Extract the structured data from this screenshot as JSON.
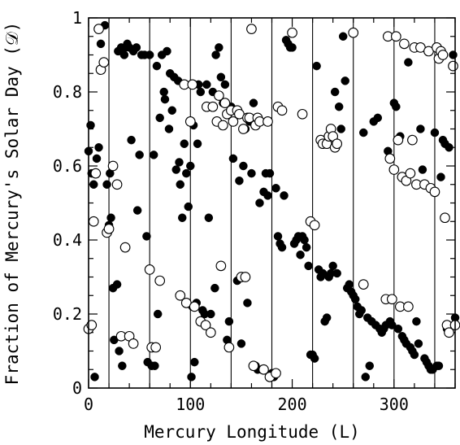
{
  "chart_data": {
    "type": "scatter",
    "title": "",
    "xlabel": "Mercury Longitude (L)",
    "ylabel": "Fraction of Mercury's Solar Day (𝒟)",
    "xlim": [
      0,
      360
    ],
    "ylim": [
      0,
      1
    ],
    "xticks": [
      0,
      100,
      200,
      300
    ],
    "yticks": [
      0,
      0.2,
      0.4,
      0.6,
      0.8,
      1
    ],
    "grid": false,
    "vertical_lines": [
      20,
      60,
      100,
      140,
      180,
      220,
      260,
      300,
      340
    ],
    "legend": "none",
    "series": [
      {
        "marker": "filled-circle",
        "color": "#000000",
        "points": [
          [
            0,
            0.64
          ],
          [
            2,
            0.71
          ],
          [
            3,
            0.58
          ],
          [
            5,
            0.55
          ],
          [
            6,
            0.03
          ],
          [
            8,
            0.62
          ],
          [
            10,
            0.65
          ],
          [
            12,
            0.93
          ],
          [
            16,
            0.98
          ],
          [
            18,
            0.55
          ],
          [
            20,
            0.44
          ],
          [
            21,
            0.58
          ],
          [
            22,
            0.46
          ],
          [
            24,
            0.27
          ],
          [
            25,
            0.13
          ],
          [
            28,
            0.28
          ],
          [
            29,
            0.91
          ],
          [
            30,
            0.1
          ],
          [
            32,
            0.92
          ],
          [
            33,
            0.06
          ],
          [
            35,
            0.9
          ],
          [
            36,
            0.92
          ],
          [
            38,
            0.93
          ],
          [
            40,
            0.92
          ],
          [
            42,
            0.67
          ],
          [
            44,
            0.91
          ],
          [
            47,
            0.92
          ],
          [
            48,
            0.48
          ],
          [
            50,
            0.63
          ],
          [
            52,
            0.9
          ],
          [
            55,
            0.9
          ],
          [
            57,
            0.41
          ],
          [
            58,
            0.07
          ],
          [
            60,
            0.9
          ],
          [
            62,
            0.06
          ],
          [
            64,
            0.63
          ],
          [
            65,
            0.06
          ],
          [
            67,
            0.87
          ],
          [
            68,
            0.2
          ],
          [
            70,
            0.73
          ],
          [
            72,
            0.9
          ],
          [
            74,
            0.8
          ],
          [
            75,
            0.78
          ],
          [
            77,
            0.91
          ],
          [
            79,
            0.7
          ],
          [
            80,
            0.85
          ],
          [
            82,
            0.75
          ],
          [
            84,
            0.84
          ],
          [
            86,
            0.59
          ],
          [
            88,
            0.83
          ],
          [
            89,
            0.61
          ],
          [
            90,
            0.55
          ],
          [
            92,
            0.46
          ],
          [
            94,
            0.66
          ],
          [
            96,
            0.58
          ],
          [
            98,
            0.49
          ],
          [
            100,
            0.6
          ],
          [
            101,
            0.03
          ],
          [
            102,
            0.22
          ],
          [
            103,
            0.71
          ],
          [
            104,
            0.07
          ],
          [
            106,
            0.23
          ],
          [
            107,
            0.66
          ],
          [
            108,
            0.82
          ],
          [
            110,
            0.8
          ],
          [
            112,
            0.21
          ],
          [
            114,
            0.2
          ],
          [
            116,
            0.82
          ],
          [
            118,
            0.46
          ],
          [
            120,
            0.2
          ],
          [
            122,
            0.8
          ],
          [
            124,
            0.27
          ],
          [
            125,
            0.9
          ],
          [
            128,
            0.92
          ],
          [
            130,
            0.84
          ],
          [
            132,
            0.77
          ],
          [
            134,
            0.82
          ],
          [
            136,
            0.13
          ],
          [
            138,
            0.18
          ],
          [
            140,
            0.76
          ],
          [
            142,
            0.62
          ],
          [
            144,
            0.75
          ],
          [
            146,
            0.29
          ],
          [
            148,
            0.56
          ],
          [
            150,
            0.12
          ],
          [
            152,
            0.6
          ],
          [
            154,
            0.7
          ],
          [
            156,
            0.23
          ],
          [
            158,
            0.72
          ],
          [
            160,
            0.58
          ],
          [
            162,
            0.77
          ],
          [
            164,
            0.06
          ],
          [
            166,
            0.05
          ],
          [
            168,
            0.5
          ],
          [
            170,
            0.05
          ],
          [
            172,
            0.53
          ],
          [
            174,
            0.58
          ],
          [
            176,
            0.52
          ],
          [
            178,
            0.58
          ],
          [
            180,
            0.04
          ],
          [
            182,
            0.03
          ],
          [
            184,
            0.54
          ],
          [
            186,
            0.41
          ],
          [
            188,
            0.39
          ],
          [
            190,
            0.38
          ],
          [
            192,
            0.52
          ],
          [
            194,
            0.94
          ],
          [
            196,
            0.93
          ],
          [
            198,
            0.92
          ],
          [
            200,
            0.92
          ],
          [
            202,
            0.39
          ],
          [
            204,
            0.4
          ],
          [
            206,
            0.41
          ],
          [
            208,
            0.36
          ],
          [
            210,
            0.41
          ],
          [
            212,
            0.4
          ],
          [
            214,
            0.38
          ],
          [
            216,
            0.33
          ],
          [
            218,
            0.09
          ],
          [
            220,
            0.09
          ],
          [
            222,
            0.08
          ],
          [
            224,
            0.87
          ],
          [
            226,
            0.32
          ],
          [
            228,
            0.3
          ],
          [
            230,
            0.31
          ],
          [
            232,
            0.18
          ],
          [
            234,
            0.19
          ],
          [
            236,
            0.3
          ],
          [
            238,
            0.31
          ],
          [
            240,
            0.33
          ],
          [
            242,
            0.8
          ],
          [
            244,
            0.31
          ],
          [
            246,
            0.76
          ],
          [
            248,
            0.7
          ],
          [
            250,
            0.95
          ],
          [
            252,
            0.83
          ],
          [
            254,
            0.27
          ],
          [
            256,
            0.28
          ],
          [
            258,
            0.26
          ],
          [
            260,
            0.25
          ],
          [
            262,
            0.24
          ],
          [
            264,
            0.22
          ],
          [
            266,
            0.2
          ],
          [
            268,
            0.21
          ],
          [
            270,
            0.69
          ],
          [
            272,
            0.03
          ],
          [
            274,
            0.19
          ],
          [
            276,
            0.06
          ],
          [
            278,
            0.18
          ],
          [
            280,
            0.72
          ],
          [
            282,
            0.17
          ],
          [
            284,
            0.73
          ],
          [
            286,
            0.16
          ],
          [
            288,
            0.15
          ],
          [
            290,
            0.16
          ],
          [
            292,
            0.17
          ],
          [
            294,
            0.64
          ],
          [
            296,
            0.18
          ],
          [
            298,
            0.17
          ],
          [
            300,
            0.77
          ],
          [
            302,
            0.76
          ],
          [
            304,
            0.16
          ],
          [
            306,
            0.68
          ],
          [
            308,
            0.14
          ],
          [
            310,
            0.13
          ],
          [
            312,
            0.12
          ],
          [
            314,
            0.88
          ],
          [
            316,
            0.11
          ],
          [
            318,
            0.1
          ],
          [
            320,
            0.09
          ],
          [
            322,
            0.18
          ],
          [
            324,
            0.12
          ],
          [
            326,
            0.7
          ],
          [
            328,
            0.59
          ],
          [
            330,
            0.08
          ],
          [
            332,
            0.07
          ],
          [
            334,
            0.06
          ],
          [
            336,
            0.05
          ],
          [
            338,
            0.05
          ],
          [
            340,
            0.69
          ],
          [
            342,
            0.06
          ],
          [
            344,
            0.06
          ],
          [
            346,
            0.57
          ],
          [
            348,
            0.67
          ],
          [
            350,
            0.66
          ],
          [
            352,
            0.16
          ],
          [
            354,
            0.65
          ],
          [
            358,
            0.9
          ],
          [
            360,
            0.19
          ]
        ]
      },
      {
        "marker": "open-circle",
        "color": "#000000",
        "points": [
          [
            0,
            0.16
          ],
          [
            3,
            0.17
          ],
          [
            5,
            0.45
          ],
          [
            7,
            0.58
          ],
          [
            10,
            0.97
          ],
          [
            12,
            0.86
          ],
          [
            15,
            0.88
          ],
          [
            18,
            0.42
          ],
          [
            20,
            0.43
          ],
          [
            24,
            0.6
          ],
          [
            28,
            0.55
          ],
          [
            32,
            0.14
          ],
          [
            36,
            0.38
          ],
          [
            40,
            0.14
          ],
          [
            44,
            0.12
          ],
          [
            60,
            0.32
          ],
          [
            62,
            0.11
          ],
          [
            66,
            0.11
          ],
          [
            70,
            0.29
          ],
          [
            90,
            0.25
          ],
          [
            94,
            0.82
          ],
          [
            96,
            0.23
          ],
          [
            100,
            0.72
          ],
          [
            102,
            0.82
          ],
          [
            104,
            0.22
          ],
          [
            110,
            0.18
          ],
          [
            115,
            0.17
          ],
          [
            116,
            0.76
          ],
          [
            120,
            0.15
          ],
          [
            122,
            0.76
          ],
          [
            126,
            0.72
          ],
          [
            128,
            0.79
          ],
          [
            130,
            0.33
          ],
          [
            132,
            0.71
          ],
          [
            134,
            0.77
          ],
          [
            136,
            0.74
          ],
          [
            138,
            0.11
          ],
          [
            140,
            0.75
          ],
          [
            142,
            0.72
          ],
          [
            146,
            0.75
          ],
          [
            148,
            0.74
          ],
          [
            150,
            0.3
          ],
          [
            152,
            0.7
          ],
          [
            154,
            0.3
          ],
          [
            156,
            0.73
          ],
          [
            158,
            0.73
          ],
          [
            160,
            0.97
          ],
          [
            162,
            0.06
          ],
          [
            164,
            0.71
          ],
          [
            166,
            0.73
          ],
          [
            168,
            0.72
          ],
          [
            172,
            0.05
          ],
          [
            176,
            0.72
          ],
          [
            178,
            0.03
          ],
          [
            184,
            0.04
          ],
          [
            186,
            0.76
          ],
          [
            190,
            0.75
          ],
          [
            200,
            0.96
          ],
          [
            210,
            0.74
          ],
          [
            218,
            0.45
          ],
          [
            222,
            0.44
          ],
          [
            228,
            0.67
          ],
          [
            230,
            0.66
          ],
          [
            234,
            0.66
          ],
          [
            236,
            0.68
          ],
          [
            238,
            0.7
          ],
          [
            240,
            0.68
          ],
          [
            242,
            0.65
          ],
          [
            244,
            0.66
          ],
          [
            260,
            0.96
          ],
          [
            270,
            0.28
          ],
          [
            292,
            0.24
          ],
          [
            294,
            0.95
          ],
          [
            296,
            0.62
          ],
          [
            298,
            0.24
          ],
          [
            300,
            0.59
          ],
          [
            302,
            0.95
          ],
          [
            304,
            0.67
          ],
          [
            306,
            0.22
          ],
          [
            308,
            0.57
          ],
          [
            310,
            0.93
          ],
          [
            312,
            0.56
          ],
          [
            314,
            0.22
          ],
          [
            316,
            0.58
          ],
          [
            318,
            0.67
          ],
          [
            320,
            0.92
          ],
          [
            322,
            0.55
          ],
          [
            326,
            0.92
          ],
          [
            330,
            0.55
          ],
          [
            334,
            0.91
          ],
          [
            336,
            0.54
          ],
          [
            340,
            0.53
          ],
          [
            342,
            0.92
          ],
          [
            344,
            0.89
          ],
          [
            346,
            0.91
          ],
          [
            348,
            0.9
          ],
          [
            350,
            0.46
          ],
          [
            352,
            0.17
          ],
          [
            354,
            0.15
          ],
          [
            358,
            0.87
          ],
          [
            360,
            0.17
          ]
        ]
      }
    ]
  }
}
